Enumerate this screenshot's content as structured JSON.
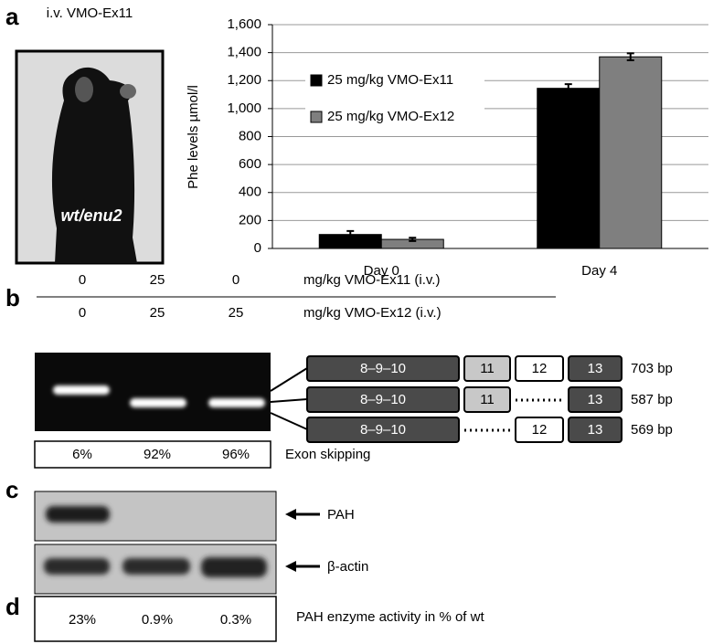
{
  "panel_a": {
    "label": "a",
    "caption": "i.v. VMO-Ex11",
    "image_text": "wt/enu2"
  },
  "chart_data": {
    "type": "bar",
    "ylabel": "Phe levels µmol/l",
    "categories": [
      "Day 0",
      "Day 4"
    ],
    "series": [
      {
        "name": "25 mg/kg VMO-Ex11",
        "color": "#000000",
        "values": [
          100,
          1145
        ],
        "errors": [
          25,
          30
        ]
      },
      {
        "name": "25 mg/kg VMO-Ex12",
        "color": "#7f7f7f",
        "values": [
          65,
          1370
        ],
        "errors": [
          12,
          25
        ]
      }
    ],
    "ylim": [
      0,
      1600
    ],
    "yticks": [
      0,
      200,
      400,
      600,
      800,
      {
        "value": 1000,
        "label": "1,000"
      },
      {
        "value": 1200,
        "label": "1,200"
      },
      {
        "value": 1400,
        "label": "1,400"
      },
      {
        "value": 1600,
        "label": "1,600"
      }
    ],
    "grid": true
  },
  "panel_b": {
    "label": "b",
    "doses": [
      [
        "0",
        "25",
        "0",
        "mg/kg VMO-Ex11 (i.v.)"
      ],
      [
        "0",
        "25",
        "25",
        "mg/kg VMO-Ex12 (i.v.)"
      ]
    ],
    "transcripts": [
      {
        "exons": [
          "8–9–10",
          "11",
          "12",
          "13"
        ],
        "size": "703 bp"
      },
      {
        "exons": [
          "8–9–10",
          "11",
          "13"
        ],
        "size": "587 bp"
      },
      {
        "exons": [
          "8–9–10",
          "12",
          "13"
        ],
        "size": "569 bp"
      }
    ],
    "skipping": [
      "6%",
      "92%",
      "96%"
    ],
    "skipping_label": "Exon skipping"
  },
  "panel_c": {
    "label": "c",
    "bands": [
      "PAH",
      "β-actin"
    ]
  },
  "panel_d": {
    "label": "d",
    "activity": [
      "23%",
      "0.9%",
      "0.3%"
    ],
    "activity_label": "PAH enzyme activity in % of wt"
  }
}
